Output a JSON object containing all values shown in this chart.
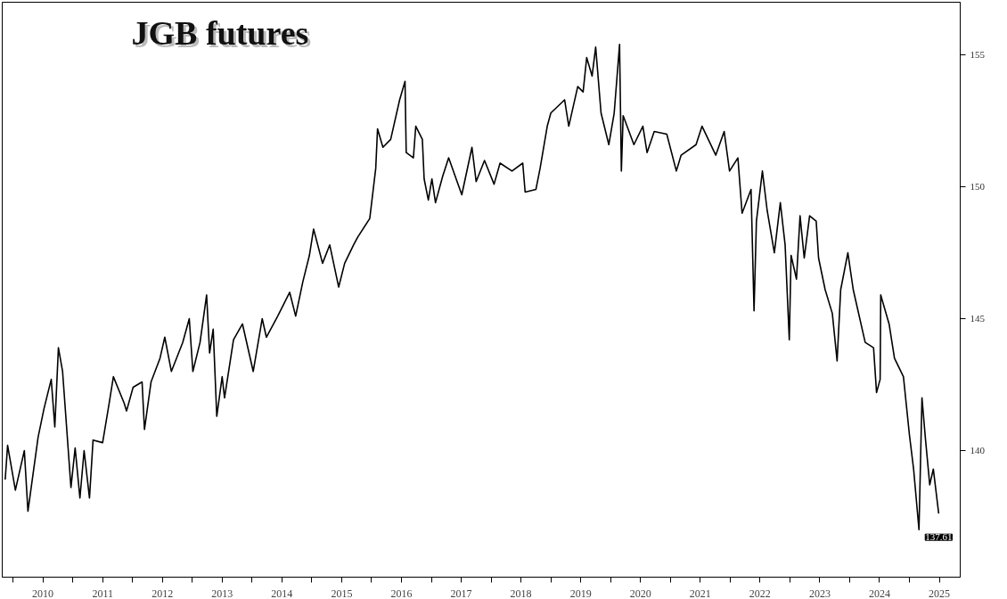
{
  "chart_data": {
    "type": "line",
    "title": "JGB futures",
    "x": [
      2009.87,
      2009.91,
      2010.04,
      2010.19,
      2010.25,
      2010.42,
      2010.52,
      2010.64,
      2010.7,
      2010.76,
      2010.83,
      2010.97,
      2011.04,
      2011.12,
      2011.19,
      2011.28,
      2011.34,
      2011.5,
      2011.61,
      2011.68,
      2011.86,
      2011.9,
      2012.01,
      2012.16,
      2012.2,
      2012.31,
      2012.46,
      2012.54,
      2012.65,
      2012.84,
      2012.95,
      2013.01,
      2013.13,
      2013.24,
      2013.29,
      2013.35,
      2013.41,
      2013.5,
      2013.54,
      2013.69,
      2013.84,
      2014.02,
      2014.17,
      2014.24,
      2014.43,
      2014.63,
      2014.73,
      2014.85,
      2014.96,
      2015.03,
      2015.18,
      2015.3,
      2015.45,
      2015.55,
      2015.7,
      2015.77,
      2015.97,
      2016.07,
      2016.1,
      2016.19,
      2016.32,
      2016.47,
      2016.56,
      2016.58,
      2016.7,
      2016.74,
      2016.85,
      2016.88,
      2016.95,
      2017.01,
      2017.07,
      2017.19,
      2017.29,
      2017.51,
      2017.68,
      2017.75,
      2017.89,
      2018.05,
      2018.15,
      2018.35,
      2018.53,
      2018.57,
      2018.75,
      2018.82,
      2018.94,
      2019.0,
      2019.23,
      2019.3,
      2019.45,
      2019.54,
      2019.6,
      2019.69,
      2019.75,
      2019.84,
      2019.97,
      2020.06,
      2020.15,
      2020.18,
      2020.21,
      2020.39,
      2020.54,
      2020.61,
      2020.73,
      2020.94,
      2021.1,
      2021.18,
      2021.43,
      2021.53,
      2021.76,
      2021.9,
      2021.99,
      2022.13,
      2022.2,
      2022.35,
      2022.4,
      2022.44,
      2022.54,
      2022.62,
      2022.74,
      2022.84,
      2022.92,
      2022.99,
      2023.02,
      2023.11,
      2023.17,
      2023.24,
      2023.33,
      2023.44,
      2023.48,
      2023.59,
      2023.71,
      2023.79,
      2023.85,
      2023.97,
      2024.06,
      2024.26,
      2024.4,
      2024.45,
      2024.51,
      2024.52,
      2024.66,
      2024.75,
      2024.9,
      2025.0,
      2025.07,
      2025.16,
      2025.21,
      2025.27,
      2025.34,
      2025.4,
      2025.49
    ],
    "series": [
      {
        "color": "#000000",
        "values": [
          138.9,
          140.2,
          138.5,
          140.0,
          137.7,
          140.5,
          141.6,
          142.7,
          140.9,
          143.9,
          143.0,
          138.6,
          140.1,
          138.2,
          140.0,
          138.2,
          140.4,
          140.3,
          141.8,
          142.8,
          141.8,
          141.5,
          142.4,
          142.6,
          140.8,
          142.6,
          143.5,
          144.3,
          143.0,
          144.1,
          145.0,
          143.0,
          144.1,
          145.9,
          143.7,
          144.6,
          141.3,
          142.8,
          142.0,
          144.2,
          144.8,
          143.0,
          145.0,
          144.3,
          145.1,
          146.0,
          145.1,
          146.4,
          147.4,
          148.4,
          147.1,
          147.8,
          146.2,
          147.1,
          147.8,
          148.1,
          148.8,
          150.7,
          152.2,
          151.5,
          151.8,
          153.3,
          154.0,
          151.3,
          151.1,
          152.3,
          151.8,
          150.3,
          149.5,
          150.3,
          149.4,
          150.4,
          151.1,
          149.7,
          151.5,
          150.2,
          151.0,
          150.1,
          150.9,
          150.6,
          150.9,
          149.8,
          149.9,
          150.7,
          152.3,
          152.8,
          153.3,
          152.3,
          153.8,
          153.6,
          154.9,
          154.2,
          155.3,
          152.8,
          151.6,
          152.8,
          155.4,
          150.6,
          152.7,
          151.6,
          152.3,
          151.3,
          152.1,
          152.0,
          150.6,
          151.2,
          151.6,
          152.3,
          151.2,
          152.1,
          150.6,
          151.1,
          149.0,
          149.9,
          145.3,
          148.7,
          150.6,
          149.1,
          147.5,
          149.4,
          147.8,
          144.2,
          147.4,
          146.5,
          148.9,
          147.3,
          148.9,
          148.7,
          147.3,
          146.1,
          145.2,
          143.4,
          146.1,
          147.5,
          146.1,
          144.1,
          143.9,
          142.2,
          142.7,
          145.9,
          144.8,
          143.5,
          142.8,
          140.6,
          139.3,
          137.0,
          142.0,
          140.4,
          138.7,
          139.3,
          137.61
        ]
      }
    ],
    "xlim": [
      2009.82,
      2025.85
    ],
    "ylim": [
      135.2,
      157.0
    ],
    "xticks": [
      {
        "value": 2010,
        "label": null
      },
      {
        "value": 2010.5,
        "label": "2010"
      },
      {
        "value": 2011,
        "label": null
      },
      {
        "value": 2011.5,
        "label": "2011"
      },
      {
        "value": 2012,
        "label": null
      },
      {
        "value": 2012.5,
        "label": "2012"
      },
      {
        "value": 2013,
        "label": null
      },
      {
        "value": 2013.5,
        "label": "2013"
      },
      {
        "value": 2014,
        "label": null
      },
      {
        "value": 2014.5,
        "label": "2014"
      },
      {
        "value": 2015,
        "label": null
      },
      {
        "value": 2015.5,
        "label": "2015"
      },
      {
        "value": 2016,
        "label": null
      },
      {
        "value": 2016.5,
        "label": "2016"
      },
      {
        "value": 2017,
        "label": null
      },
      {
        "value": 2017.5,
        "label": "2017"
      },
      {
        "value": 2018,
        "label": null
      },
      {
        "value": 2018.5,
        "label": "2018"
      },
      {
        "value": 2019,
        "label": null
      },
      {
        "value": 2019.5,
        "label": "2019"
      },
      {
        "value": 2020,
        "label": null
      },
      {
        "value": 2020.5,
        "label": "2020"
      },
      {
        "value": 2021,
        "label": null
      },
      {
        "value": 2021.5,
        "label": "2021"
      },
      {
        "value": 2022,
        "label": null
      },
      {
        "value": 2022.5,
        "label": "2022"
      },
      {
        "value": 2023,
        "label": null
      },
      {
        "value": 2023.5,
        "label": "2023"
      },
      {
        "value": 2024,
        "label": null
      },
      {
        "value": 2024.5,
        "label": "2024"
      },
      {
        "value": 2025,
        "label": null
      },
      {
        "value": 2025.5,
        "label": "2025"
      }
    ],
    "yticks": [
      140,
      145,
      150,
      155
    ],
    "annotations": [
      {
        "text": "137.61",
        "x": 2025.49,
        "y": 137.61
      }
    ],
    "grid": false
  }
}
